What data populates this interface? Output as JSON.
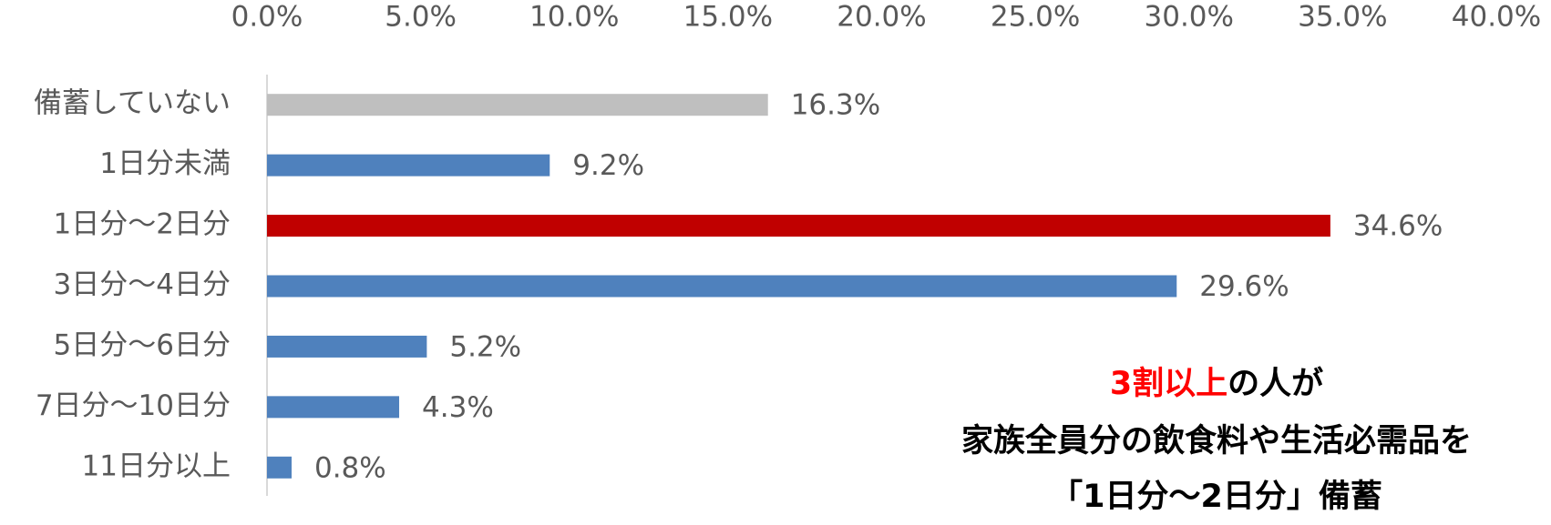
{
  "chart_data": {
    "type": "barh",
    "categories": [
      "備蓄していない",
      "1日分未満",
      "1日分～2日分",
      "3日分～4日分",
      "5日分～6日分",
      "7日分～10日分",
      "11日分以上"
    ],
    "values": [
      16.3,
      9.2,
      34.6,
      29.6,
      5.2,
      4.3,
      0.8
    ],
    "value_labels": [
      "16.3%",
      "9.2%",
      "34.6%",
      "29.6%",
      "5.2%",
      "4.3%",
      "0.8%"
    ],
    "colors": [
      "#bfbfbf",
      "#4f81bd",
      "#c00000",
      "#4f81bd",
      "#4f81bd",
      "#4f81bd",
      "#4f81bd"
    ],
    "xlim": [
      0,
      40
    ],
    "xticks": [
      {
        "value": 0,
        "label": "0.0%"
      },
      {
        "value": 5,
        "label": "5.0%"
      },
      {
        "value": 10,
        "label": "10.0%"
      },
      {
        "value": 15,
        "label": "15.0%"
      },
      {
        "value": 20,
        "label": "20.0%"
      },
      {
        "value": 25,
        "label": "25.0%"
      },
      {
        "value": 30,
        "label": "30.0%"
      },
      {
        "value": 35,
        "label": "35.0%"
      },
      {
        "value": 40,
        "label": "40.0%"
      }
    ],
    "annotation_lines": [
      [
        {
          "text": "3割以上",
          "color": "#ff0000"
        },
        {
          "text": "の人が",
          "color": "#000000"
        }
      ],
      [
        {
          "text": "家族全員分の飲食料や生活必需品を",
          "color": "#000000"
        }
      ],
      [
        {
          "text": "「1日分～2日分」備蓄",
          "color": "#000000"
        }
      ]
    ]
  }
}
